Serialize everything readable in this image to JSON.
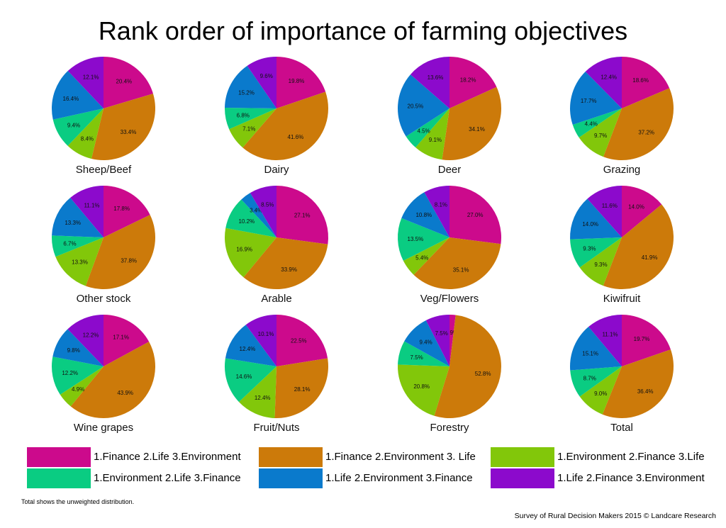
{
  "title": "Rank order of importance of farming objectives",
  "legend": [
    {
      "label": "1.Finance 2.Life 3.Environment",
      "color": "#cc0a8c"
    },
    {
      "label": "1.Finance 2.Environment 3. Life",
      "color": "#cc7a0a"
    },
    {
      "label": "1.Environment 2.Finance 3.Life",
      "color": "#82c70a"
    },
    {
      "label": "1.Environment 2.Life 3.Finance",
      "color": "#0acc82"
    },
    {
      "label": "1.Life 2.Environment 3.Finance",
      "color": "#0a7acc"
    },
    {
      "label": "1.Life 2.Finance 3.Environment",
      "color": "#8c0acc"
    }
  ],
  "footnote": "Total shows the unweighted distribution.",
  "source": "Survey of Rural Decision Makers 2015 © Landcare Research",
  "chart_data": {
    "type": "pie",
    "title": "Rank order of importance of farming objectives",
    "series_names": [
      "1.Finance 2.Life 3.Environment",
      "1.Finance 2.Environment 3. Life",
      "1.Environment 2.Finance 3.Life",
      "1.Environment 2.Life 3.Finance",
      "1.Life 2.Environment 3.Finance",
      "1.Life 2.Finance 3.Environment"
    ],
    "pies": [
      {
        "name": "Sheep/Beef",
        "values": [
          20.4,
          33.4,
          8.4,
          9.4,
          16.4,
          12.1
        ],
        "labels": [
          "20.4%",
          "33.4%",
          "8.4%",
          "9.4%",
          "16.4%",
          "12.1%"
        ]
      },
      {
        "name": "Dairy",
        "values": [
          19.8,
          41.6,
          7.1,
          6.8,
          15.2,
          9.6
        ],
        "labels": [
          "19.8%",
          "41.6%",
          "7.1%",
          "6.8%",
          "15.2%",
          "9.6%"
        ]
      },
      {
        "name": "Deer",
        "values": [
          18.2,
          34.1,
          9.1,
          4.5,
          20.5,
          13.6
        ],
        "labels": [
          "18.2%",
          "34.1%",
          "9.1%",
          "4.5%",
          "20.5%",
          "13.6%"
        ]
      },
      {
        "name": "Grazing",
        "values": [
          18.6,
          37.2,
          9.7,
          4.4,
          17.7,
          12.4
        ],
        "labels": [
          "18.6%",
          "37.2%",
          "9.7%",
          "4.4%",
          "17.7%",
          "12.4%"
        ]
      },
      {
        "name": "Other stock",
        "values": [
          17.8,
          37.8,
          13.3,
          6.7,
          13.3,
          11.1
        ],
        "labels": [
          "17.8%",
          "37.8%",
          "13.3%",
          "6.7%",
          "13.3%",
          "11.1%"
        ]
      },
      {
        "name": "Arable",
        "values": [
          27.1,
          33.9,
          16.9,
          10.2,
          3.4,
          8.5
        ],
        "labels": [
          "27.1%",
          "33.9%",
          "16.9%",
          "10.2%",
          "3.4%",
          "8.5%"
        ]
      },
      {
        "name": "Veg/Flowers",
        "values": [
          27.0,
          35.1,
          5.4,
          13.5,
          10.8,
          8.1
        ],
        "labels": [
          "27.0%",
          "35.1%",
          "5.4%",
          "13.5%",
          "10.8%",
          "8.1%"
        ]
      },
      {
        "name": "Kiwifruit",
        "values": [
          14.0,
          41.9,
          9.3,
          9.3,
          14.0,
          11.6
        ],
        "labels": [
          "14.0%",
          "41.9%",
          "9.3%",
          "9.3%",
          "14.0%",
          "11.6%"
        ]
      },
      {
        "name": "Wine grapes",
        "values": [
          17.1,
          43.9,
          4.9,
          12.2,
          9.8,
          12.2
        ],
        "labels": [
          "17.1%",
          "43.9%",
          "4.9%",
          "12.2%",
          "9.8%",
          "12.2%"
        ]
      },
      {
        "name": "Fruit/Nuts",
        "values": [
          22.5,
          28.1,
          12.4,
          14.6,
          12.4,
          10.1
        ],
        "labels": [
          "22.5%",
          "28.1%",
          "12.4%",
          "14.6%",
          "12.4%",
          "10.1%"
        ]
      },
      {
        "name": "Forestry",
        "values": [
          1.9,
          52.8,
          20.8,
          7.5,
          9.4,
          7.5
        ],
        "labels": [
          "1.9%",
          "52.8%",
          "20.8%",
          "7.5%",
          "9.4%",
          "7.5%"
        ]
      },
      {
        "name": "Total",
        "values": [
          19.7,
          36.4,
          9.0,
          8.7,
          15.1,
          11.1
        ],
        "labels": [
          "19.7%",
          "36.4%",
          "9.0%",
          "8.7%",
          "15.1%",
          "11.1%"
        ]
      }
    ]
  }
}
